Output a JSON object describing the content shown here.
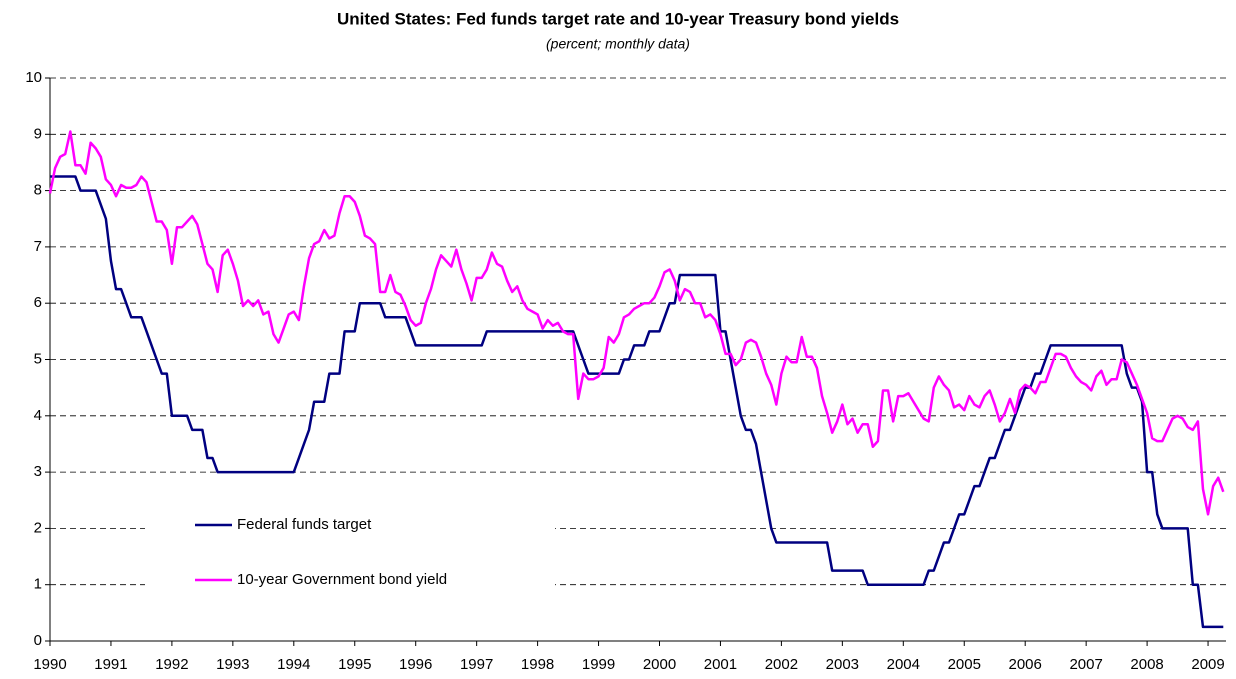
{
  "chart_data": {
    "type": "line",
    "title": "United States: Fed funds target rate and 10-year Treasury bond yields",
    "subtitle": "(percent; monthly data)",
    "categories": [
      "1990",
      null,
      null,
      null,
      null,
      null,
      null,
      null,
      null,
      null,
      null,
      null,
      "1991",
      null,
      null,
      null,
      null,
      null,
      null,
      null,
      null,
      null,
      null,
      null,
      "1992",
      null,
      null,
      null,
      null,
      null,
      null,
      null,
      null,
      null,
      null,
      null,
      "1993",
      null,
      null,
      null,
      null,
      null,
      null,
      null,
      null,
      null,
      null,
      null,
      "1994",
      null,
      null,
      null,
      null,
      null,
      null,
      null,
      null,
      null,
      null,
      null,
      "1995",
      null,
      null,
      null,
      null,
      null,
      null,
      null,
      null,
      null,
      null,
      null,
      "1996",
      null,
      null,
      null,
      null,
      null,
      null,
      null,
      null,
      null,
      null,
      null,
      "1997",
      null,
      null,
      null,
      null,
      null,
      null,
      null,
      null,
      null,
      null,
      null,
      "1998",
      null,
      null,
      null,
      null,
      null,
      null,
      null,
      null,
      null,
      null,
      null,
      "1999",
      null,
      null,
      null,
      null,
      null,
      null,
      null,
      null,
      null,
      null,
      null,
      "2000",
      null,
      null,
      null,
      null,
      null,
      null,
      null,
      null,
      null,
      null,
      null,
      "2001",
      null,
      null,
      null,
      null,
      null,
      null,
      null,
      null,
      null,
      null,
      null,
      "2002",
      null,
      null,
      null,
      null,
      null,
      null,
      null,
      null,
      null,
      null,
      null,
      "2003",
      null,
      null,
      null,
      null,
      null,
      null,
      null,
      null,
      null,
      null,
      null,
      "2004",
      null,
      null,
      null,
      null,
      null,
      null,
      null,
      null,
      null,
      null,
      null,
      "2005",
      null,
      null,
      null,
      null,
      null,
      null,
      null,
      null,
      null,
      null,
      null,
      "2006",
      null,
      null,
      null,
      null,
      null,
      null,
      null,
      null,
      null,
      null,
      null,
      "2007",
      null,
      null,
      null,
      null,
      null,
      null,
      null,
      null,
      null,
      null,
      null,
      "2008",
      null,
      null,
      null,
      null,
      null,
      null,
      null,
      null,
      null,
      null,
      null,
      "2009",
      null,
      null,
      null
    ],
    "series": [
      {
        "name": "Federal funds target",
        "color": "#000080",
        "values": [
          8.25,
          8.25,
          8.25,
          8.25,
          8.25,
          8.25,
          8.0,
          8.0,
          8.0,
          8.0,
          7.75,
          7.5,
          6.75,
          6.25,
          6.25,
          6.0,
          5.75,
          5.75,
          5.75,
          5.5,
          5.25,
          5.0,
          4.75,
          4.75,
          4.0,
          4.0,
          4.0,
          4.0,
          3.75,
          3.75,
          3.75,
          3.25,
          3.25,
          3.0,
          3.0,
          3.0,
          3.0,
          3.0,
          3.0,
          3.0,
          3.0,
          3.0,
          3.0,
          3.0,
          3.0,
          3.0,
          3.0,
          3.0,
          3.0,
          3.25,
          3.5,
          3.75,
          4.25,
          4.25,
          4.25,
          4.75,
          4.75,
          4.75,
          5.5,
          5.5,
          5.5,
          6.0,
          6.0,
          6.0,
          6.0,
          6.0,
          5.75,
          5.75,
          5.75,
          5.75,
          5.75,
          5.5,
          5.25,
          5.25,
          5.25,
          5.25,
          5.25,
          5.25,
          5.25,
          5.25,
          5.25,
          5.25,
          5.25,
          5.25,
          5.25,
          5.25,
          5.5,
          5.5,
          5.5,
          5.5,
          5.5,
          5.5,
          5.5,
          5.5,
          5.5,
          5.5,
          5.5,
          5.5,
          5.5,
          5.5,
          5.5,
          5.5,
          5.5,
          5.5,
          5.25,
          5.0,
          4.75,
          4.75,
          4.75,
          4.75,
          4.75,
          4.75,
          4.75,
          5.0,
          5.0,
          5.25,
          5.25,
          5.25,
          5.5,
          5.5,
          5.5,
          5.75,
          6.0,
          6.0,
          6.5,
          6.5,
          6.5,
          6.5,
          6.5,
          6.5,
          6.5,
          6.5,
          5.5,
          5.5,
          5.0,
          4.5,
          4.0,
          3.75,
          3.75,
          3.5,
          3.0,
          2.5,
          2.0,
          1.75,
          1.75,
          1.75,
          1.75,
          1.75,
          1.75,
          1.75,
          1.75,
          1.75,
          1.75,
          1.75,
          1.25,
          1.25,
          1.25,
          1.25,
          1.25,
          1.25,
          1.25,
          1.0,
          1.0,
          1.0,
          1.0,
          1.0,
          1.0,
          1.0,
          1.0,
          1.0,
          1.0,
          1.0,
          1.0,
          1.25,
          1.25,
          1.5,
          1.75,
          1.75,
          2.0,
          2.25,
          2.25,
          2.5,
          2.75,
          2.75,
          3.0,
          3.25,
          3.25,
          3.5,
          3.75,
          3.75,
          4.0,
          4.25,
          4.5,
          4.5,
          4.75,
          4.75,
          5.0,
          5.25,
          5.25,
          5.25,
          5.25,
          5.25,
          5.25,
          5.25,
          5.25,
          5.25,
          5.25,
          5.25,
          5.25,
          5.25,
          5.25,
          5.25,
          4.75,
          4.5,
          4.5,
          4.25,
          3.0,
          3.0,
          2.25,
          2.0,
          2.0,
          2.0,
          2.0,
          2.0,
          2.0,
          1.0,
          1.0,
          0.25,
          0.25,
          0.25,
          0.25,
          0.25
        ]
      },
      {
        "name": "10-year Government bond yield",
        "color": "#ff00ff",
        "values": [
          7.95,
          8.4,
          8.6,
          8.65,
          9.05,
          8.45,
          8.45,
          8.3,
          8.85,
          8.75,
          8.6,
          8.2,
          8.1,
          7.9,
          8.1,
          8.05,
          8.05,
          8.1,
          8.25,
          8.15,
          7.8,
          7.45,
          7.45,
          7.3,
          6.7,
          7.35,
          7.35,
          7.45,
          7.55,
          7.4,
          7.05,
          6.7,
          6.6,
          6.2,
          6.85,
          6.95,
          6.7,
          6.4,
          5.95,
          6.05,
          5.95,
          6.05,
          5.8,
          5.85,
          5.45,
          5.3,
          5.55,
          5.8,
          5.85,
          5.7,
          6.3,
          6.8,
          7.05,
          7.1,
          7.3,
          7.15,
          7.2,
          7.6,
          7.9,
          7.9,
          7.8,
          7.55,
          7.2,
          7.15,
          7.05,
          6.2,
          6.2,
          6.5,
          6.2,
          6.15,
          5.95,
          5.7,
          5.6,
          5.65,
          6.0,
          6.25,
          6.6,
          6.85,
          6.75,
          6.65,
          6.95,
          6.6,
          6.35,
          6.05,
          6.45,
          6.45,
          6.6,
          6.9,
          6.7,
          6.65,
          6.4,
          6.2,
          6.3,
          6.05,
          5.9,
          5.85,
          5.8,
          5.55,
          5.7,
          5.6,
          5.65,
          5.5,
          5.45,
          5.45,
          4.3,
          4.75,
          4.65,
          4.65,
          4.7,
          4.85,
          5.4,
          5.3,
          5.45,
          5.75,
          5.8,
          5.9,
          5.95,
          6.0,
          6.0,
          6.1,
          6.3,
          6.55,
          6.6,
          6.4,
          6.05,
          6.25,
          6.2,
          6.0,
          6.0,
          5.75,
          5.8,
          5.7,
          5.45,
          5.1,
          5.1,
          4.9,
          5.0,
          5.3,
          5.35,
          5.3,
          5.05,
          4.75,
          4.55,
          4.2,
          4.75,
          5.05,
          4.95,
          4.95,
          5.4,
          5.05,
          5.05,
          4.85,
          4.35,
          4.05,
          3.7,
          3.9,
          4.2,
          3.85,
          3.95,
          3.7,
          3.85,
          3.85,
          3.45,
          3.55,
          4.45,
          4.45,
          3.9,
          4.35,
          4.35,
          4.4,
          4.25,
          4.1,
          3.95,
          3.9,
          4.5,
          4.7,
          4.55,
          4.45,
          4.15,
          4.2,
          4.1,
          4.35,
          4.2,
          4.15,
          4.35,
          4.45,
          4.2,
          3.9,
          4.05,
          4.3,
          4.05,
          4.45,
          4.55,
          4.5,
          4.4,
          4.6,
          4.6,
          4.85,
          5.1,
          5.1,
          5.05,
          4.85,
          4.7,
          4.6,
          4.55,
          4.45,
          4.7,
          4.8,
          4.55,
          4.65,
          4.65,
          5.0,
          4.95,
          4.75,
          4.55,
          4.3,
          4.05,
          3.6,
          3.55,
          3.55,
          3.75,
          3.95,
          4.0,
          3.95,
          3.8,
          3.75,
          3.9,
          2.7,
          2.25,
          2.75,
          2.9,
          2.65
        ]
      }
    ],
    "ylim": [
      0,
      10
    ],
    "yticks": [
      0,
      1,
      2,
      3,
      4,
      5,
      6,
      7,
      8,
      9,
      10
    ],
    "grid": true
  }
}
